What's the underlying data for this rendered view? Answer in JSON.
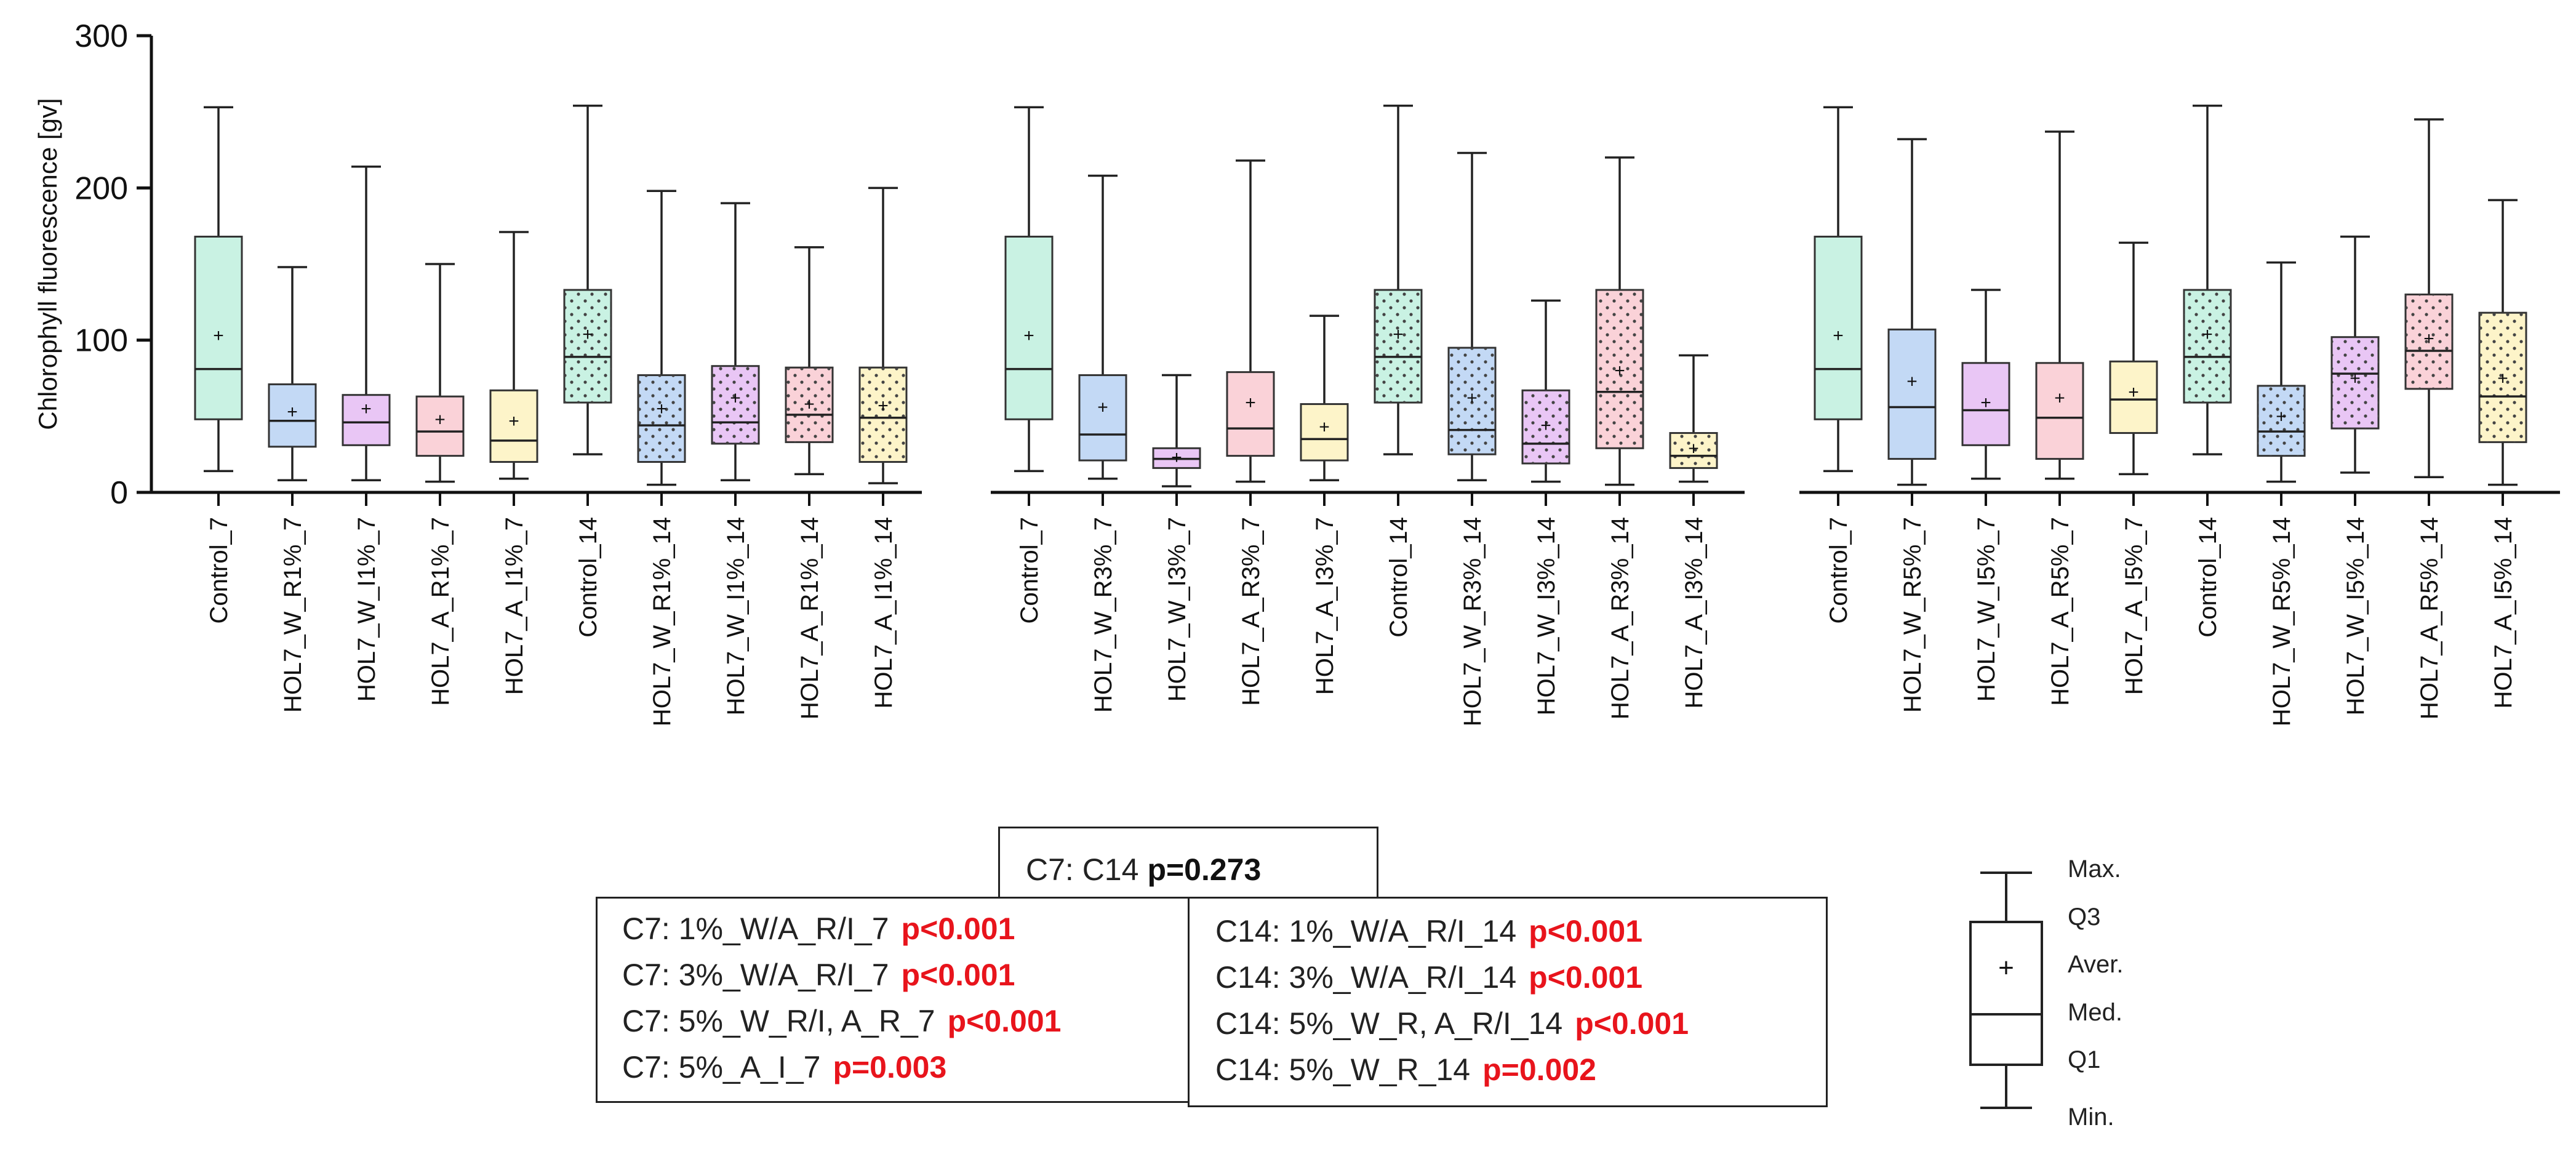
{
  "chart_data": {
    "type": "boxplot",
    "ylabel": "Chlorophyll fluorescence [gv]",
    "ylim": [
      0,
      300
    ],
    "yticks": [
      0,
      100,
      200,
      300
    ],
    "panels": [
      {
        "categories": [
          "Control_7",
          "HOL7_W_R1%_7",
          "HOL7_W_I1%_7",
          "HOL7_A_R1%_7",
          "HOL7_A_I1%_7",
          "Control_14",
          "HOL7_W_R1%_14",
          "HOL7_W_I1%_14",
          "HOL7_A_R1%_14",
          "HOL7_A_I1%_14"
        ],
        "boxes": [
          {
            "min": 14,
            "q1": 48,
            "median": 81,
            "q3": 168,
            "max": 253,
            "mean": 103,
            "color": "#c9f2e3",
            "dotted": false
          },
          {
            "min": 8,
            "q1": 30,
            "median": 47,
            "q3": 71,
            "max": 148,
            "mean": 53,
            "color": "#c3d9f5",
            "dotted": false
          },
          {
            "min": 8,
            "q1": 31,
            "median": 46,
            "q3": 64,
            "max": 214,
            "mean": 55,
            "color": "#e9c6f5",
            "dotted": false
          },
          {
            "min": 7,
            "q1": 24,
            "median": 40,
            "q3": 63,
            "max": 150,
            "mean": 48,
            "color": "#fad2d8",
            "dotted": false
          },
          {
            "min": 9,
            "q1": 20,
            "median": 34,
            "q3": 67,
            "max": 171,
            "mean": 47,
            "color": "#fdf4c9",
            "dotted": false
          },
          {
            "min": 25,
            "q1": 59,
            "median": 89,
            "q3": 133,
            "max": 254,
            "mean": 104,
            "color": "#c9f2e3",
            "dotted": true
          },
          {
            "min": 5,
            "q1": 20,
            "median": 44,
            "q3": 77,
            "max": 198,
            "mean": 55,
            "color": "#c3d9f5",
            "dotted": true
          },
          {
            "min": 8,
            "q1": 32,
            "median": 46,
            "q3": 83,
            "max": 190,
            "mean": 62,
            "color": "#e9c6f5",
            "dotted": true
          },
          {
            "min": 12,
            "q1": 33,
            "median": 51,
            "q3": 82,
            "max": 161,
            "mean": 58,
            "color": "#fad2d8",
            "dotted": true
          },
          {
            "min": 6,
            "q1": 20,
            "median": 49,
            "q3": 82,
            "max": 200,
            "mean": 57,
            "color": "#fdf4c9",
            "dotted": true
          }
        ]
      },
      {
        "categories": [
          "Control_7",
          "HOL7_W_R3%_7",
          "HOL7_W_I3%_7",
          "HOL7_A_R3%_7",
          "HOL7_A_I3%_7",
          "Control_14",
          "HOL7_W_R3%_14",
          "HOL7_W_I3%_14",
          "HOL7_A_R3%_14",
          "HOL7_A_I3%_14"
        ],
        "boxes": [
          {
            "min": 14,
            "q1": 48,
            "median": 81,
            "q3": 168,
            "max": 253,
            "mean": 103,
            "color": "#c9f2e3",
            "dotted": false
          },
          {
            "min": 9,
            "q1": 21,
            "median": 38,
            "q3": 77,
            "max": 208,
            "mean": 56,
            "color": "#c3d9f5",
            "dotted": false
          },
          {
            "min": 4,
            "q1": 16,
            "median": 22,
            "q3": 29,
            "max": 77,
            "mean": 23,
            "color": "#e9c6f5",
            "dotted": false
          },
          {
            "min": 7,
            "q1": 24,
            "median": 42,
            "q3": 79,
            "max": 218,
            "mean": 59,
            "color": "#fad2d8",
            "dotted": false
          },
          {
            "min": 8,
            "q1": 21,
            "median": 35,
            "q3": 58,
            "max": 116,
            "mean": 43,
            "color": "#fdf4c9",
            "dotted": false
          },
          {
            "min": 25,
            "q1": 59,
            "median": 89,
            "q3": 133,
            "max": 254,
            "mean": 104,
            "color": "#c9f2e3",
            "dotted": true
          },
          {
            "min": 8,
            "q1": 25,
            "median": 41,
            "q3": 95,
            "max": 223,
            "mean": 62,
            "color": "#c3d9f5",
            "dotted": true
          },
          {
            "min": 7,
            "q1": 19,
            "median": 32,
            "q3": 67,
            "max": 126,
            "mean": 44,
            "color": "#e9c6f5",
            "dotted": true
          },
          {
            "min": 5,
            "q1": 29,
            "median": 66,
            "q3": 133,
            "max": 220,
            "mean": 80,
            "color": "#fad2d8",
            "dotted": true
          },
          {
            "min": 7,
            "q1": 16,
            "median": 24,
            "q3": 39,
            "max": 90,
            "mean": 29,
            "color": "#fdf4c9",
            "dotted": true
          }
        ]
      },
      {
        "categories": [
          "Control_7",
          "HOL7_W_R5%_7",
          "HOL7_W_I5%_7",
          "HOL7_A_R5%_7",
          "HOL7_A_I5%_7",
          "Control_14",
          "HOL7_W_R5%_14",
          "HOL7_W_I5%_14",
          "HOL7_A_R5%_14",
          "HOL7_A_I5%_14"
        ],
        "boxes": [
          {
            "min": 14,
            "q1": 48,
            "median": 81,
            "q3": 168,
            "max": 253,
            "mean": 103,
            "color": "#c9f2e3",
            "dotted": false
          },
          {
            "min": 5,
            "q1": 22,
            "median": 56,
            "q3": 107,
            "max": 232,
            "mean": 73,
            "color": "#c3d9f5",
            "dotted": false
          },
          {
            "min": 9,
            "q1": 31,
            "median": 54,
            "q3": 85,
            "max": 133,
            "mean": 59,
            "color": "#e9c6f5",
            "dotted": false
          },
          {
            "min": 9,
            "q1": 22,
            "median": 49,
            "q3": 85,
            "max": 237,
            "mean": 62,
            "color": "#fad2d8",
            "dotted": false
          },
          {
            "min": 12,
            "q1": 39,
            "median": 61,
            "q3": 86,
            "max": 164,
            "mean": 66,
            "color": "#fdf4c9",
            "dotted": false
          },
          {
            "min": 25,
            "q1": 59,
            "median": 89,
            "q3": 133,
            "max": 254,
            "mean": 104,
            "color": "#c9f2e3",
            "dotted": true
          },
          {
            "min": 7,
            "q1": 24,
            "median": 40,
            "q3": 70,
            "max": 151,
            "mean": 50,
            "color": "#c3d9f5",
            "dotted": true
          },
          {
            "min": 13,
            "q1": 42,
            "median": 78,
            "q3": 102,
            "max": 168,
            "mean": 75,
            "color": "#e9c6f5",
            "dotted": true
          },
          {
            "min": 10,
            "q1": 68,
            "median": 93,
            "q3": 130,
            "max": 245,
            "mean": 101,
            "color": "#fad2d8",
            "dotted": true
          },
          {
            "min": 5,
            "q1": 33,
            "median": 63,
            "q3": 118,
            "max": 192,
            "mean": 75,
            "color": "#fdf4c9",
            "dotted": true
          }
        ]
      }
    ]
  },
  "stats": {
    "top_box": {
      "text": "C7: C14",
      "p": "p=0.273"
    },
    "left_box": [
      {
        "text": "C7: 1%_W/A_R/I_7",
        "p": "p<0.001"
      },
      {
        "text": "C7: 3%_W/A_R/I_7",
        "p": "p<0.001"
      },
      {
        "text": "C7: 5%_W_R/I, A_R_7",
        "p": "p<0.001"
      },
      {
        "text": "C7: 5%_A_I_7",
        "p": "p=0.003"
      }
    ],
    "right_box": [
      {
        "text": "C14: 1%_W/A_R/I_14",
        "p": "p<0.001"
      },
      {
        "text": "C14: 3%_W/A_R/I_14",
        "p": "p<0.001"
      },
      {
        "text": "C14: 5%_W_R, A_R/I_14",
        "p": "p<0.001"
      },
      {
        "text": "C14: 5%_W_R_14",
        "p": "p=0.002"
      }
    ]
  },
  "legend": {
    "mean_marker": "+",
    "labels": [
      "Max.",
      "Q3",
      "Aver.",
      "Med.",
      "Q1",
      "Min."
    ]
  }
}
